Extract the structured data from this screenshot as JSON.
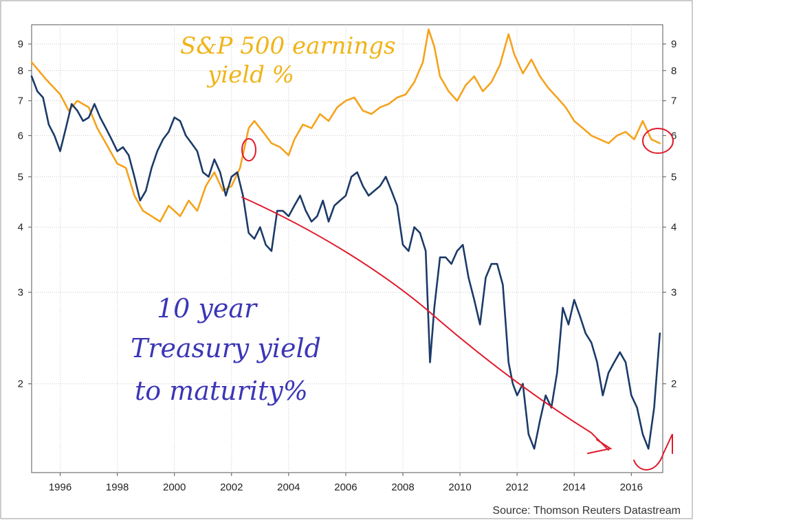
{
  "chart_data": {
    "type": "line",
    "source": "Source: Thomson Reuters Datastream",
    "y_scale": "log",
    "ylim": [
      1.35,
      9.8
    ],
    "xlim": [
      1995.0,
      2017.1
    ],
    "grid": true,
    "y_ticks": [
      2,
      3,
      4,
      5,
      6,
      7,
      8,
      9
    ],
    "x_ticks": [
      1996,
      1998,
      2000,
      2002,
      2004,
      2006,
      2008,
      2010,
      2012,
      2014,
      2016
    ],
    "series": [
      {
        "name": "S&P 500 earnings yield %",
        "color": "#f5a21b",
        "x": [
          1995.0,
          1995.5,
          1996.0,
          1996.3,
          1996.6,
          1997.0,
          1997.3,
          1997.6,
          1998.0,
          1998.3,
          1998.6,
          1998.9,
          1999.2,
          1999.5,
          1999.8,
          2000.2,
          2000.5,
          2000.8,
          2001.1,
          2001.4,
          2001.7,
          2002.0,
          2002.3,
          2002.6,
          2002.8,
          2003.1,
          2003.4,
          2003.7,
          2004.0,
          2004.2,
          2004.5,
          2004.8,
          2005.1,
          2005.4,
          2005.7,
          2006.0,
          2006.3,
          2006.6,
          2006.9,
          2007.2,
          2007.5,
          2007.8,
          2008.1,
          2008.4,
          2008.7,
          2008.9,
          2009.1,
          2009.3,
          2009.6,
          2009.9,
          2010.2,
          2010.5,
          2010.8,
          2011.1,
          2011.4,
          2011.7,
          2011.9,
          2012.2,
          2012.5,
          2012.8,
          2013.1,
          2013.4,
          2013.7,
          2014.0,
          2014.3,
          2014.6,
          2014.9,
          2015.2,
          2015.5,
          2015.8,
          2016.1,
          2016.4,
          2016.7,
          2017.0
        ],
        "values": [
          8.3,
          7.7,
          7.2,
          6.7,
          7.0,
          6.8,
          6.2,
          5.8,
          5.3,
          5.2,
          4.6,
          4.3,
          4.2,
          4.1,
          4.4,
          4.2,
          4.5,
          4.3,
          4.8,
          5.1,
          4.7,
          4.8,
          5.2,
          6.2,
          6.4,
          6.1,
          5.8,
          5.7,
          5.5,
          5.9,
          6.3,
          6.2,
          6.6,
          6.4,
          6.8,
          7.0,
          7.1,
          6.7,
          6.6,
          6.8,
          6.9,
          7.1,
          7.2,
          7.6,
          8.3,
          9.6,
          8.9,
          7.8,
          7.3,
          7.0,
          7.5,
          7.8,
          7.3,
          7.6,
          8.2,
          9.4,
          8.6,
          7.9,
          8.4,
          7.8,
          7.4,
          7.1,
          6.8,
          6.4,
          6.2,
          6.0,
          5.9,
          5.8,
          6.0,
          6.1,
          5.9,
          6.4,
          5.9,
          5.8
        ]
      },
      {
        "name": "10 year Treasury yield to maturity %",
        "color": "#1b3a68",
        "x": [
          1995.0,
          1995.2,
          1995.4,
          1995.6,
          1995.8,
          1996.0,
          1996.2,
          1996.4,
          1996.6,
          1996.8,
          1997.0,
          1997.2,
          1997.4,
          1997.6,
          1997.8,
          1998.0,
          1998.2,
          1998.4,
          1998.6,
          1998.8,
          1999.0,
          1999.2,
          1999.4,
          1999.6,
          1999.8,
          2000.0,
          2000.2,
          2000.4,
          2000.6,
          2000.8,
          2001.0,
          2001.2,
          2001.4,
          2001.6,
          2001.8,
          2002.0,
          2002.2,
          2002.4,
          2002.6,
          2002.8,
          2003.0,
          2003.2,
          2003.4,
          2003.6,
          2003.8,
          2004.0,
          2004.2,
          2004.4,
          2004.6,
          2004.8,
          2005.0,
          2005.2,
          2005.4,
          2005.6,
          2005.8,
          2006.0,
          2006.2,
          2006.4,
          2006.6,
          2006.8,
          2007.0,
          2007.2,
          2007.4,
          2007.6,
          2007.8,
          2008.0,
          2008.2,
          2008.4,
          2008.6,
          2008.8,
          2008.95,
          2009.1,
          2009.3,
          2009.5,
          2009.7,
          2009.9,
          2010.1,
          2010.3,
          2010.5,
          2010.7,
          2010.9,
          2011.1,
          2011.3,
          2011.5,
          2011.7,
          2011.85,
          2012.0,
          2012.2,
          2012.4,
          2012.6,
          2012.8,
          2013.0,
          2013.2,
          2013.4,
          2013.6,
          2013.8,
          2014.0,
          2014.2,
          2014.4,
          2014.6,
          2014.8,
          2015.0,
          2015.2,
          2015.4,
          2015.6,
          2015.8,
          2016.0,
          2016.2,
          2016.4,
          2016.6,
          2016.8,
          2017.0
        ],
        "values": [
          7.8,
          7.3,
          7.1,
          6.3,
          6.0,
          5.6,
          6.2,
          6.9,
          6.7,
          6.4,
          6.5,
          6.9,
          6.5,
          6.2,
          5.9,
          5.6,
          5.7,
          5.5,
          5.0,
          4.5,
          4.7,
          5.2,
          5.6,
          5.9,
          6.1,
          6.5,
          6.4,
          6.0,
          5.8,
          5.6,
          5.1,
          5.0,
          5.4,
          5.1,
          4.6,
          5.0,
          5.1,
          4.6,
          3.9,
          3.8,
          4.0,
          3.7,
          3.6,
          4.3,
          4.3,
          4.2,
          4.4,
          4.6,
          4.3,
          4.1,
          4.2,
          4.5,
          4.1,
          4.4,
          4.5,
          4.6,
          5.0,
          5.1,
          4.8,
          4.6,
          4.7,
          4.8,
          5.0,
          4.7,
          4.4,
          3.7,
          3.6,
          4.0,
          3.9,
          3.6,
          2.2,
          2.8,
          3.5,
          3.5,
          3.4,
          3.6,
          3.7,
          3.2,
          2.9,
          2.6,
          3.2,
          3.4,
          3.4,
          3.1,
          2.2,
          2.0,
          1.9,
          2.0,
          1.6,
          1.5,
          1.7,
          1.9,
          1.8,
          2.1,
          2.8,
          2.6,
          2.9,
          2.7,
          2.5,
          2.4,
          2.2,
          1.9,
          2.1,
          2.2,
          2.3,
          2.2,
          1.9,
          1.8,
          1.6,
          1.5,
          1.8,
          2.5
        ]
      }
    ]
  },
  "annotations": {
    "earnings_label_line1": "S&P 500 earnings",
    "earnings_label_line2": "yield %",
    "treasury_label_line1": "10 year",
    "treasury_label_line2": "Treasury yield",
    "treasury_label_line3": "to maturity%",
    "handwriting_color_orange": "#f0b417",
    "handwriting_color_blue": "#3b36b5",
    "handwriting_color_red": "#e0192b"
  }
}
